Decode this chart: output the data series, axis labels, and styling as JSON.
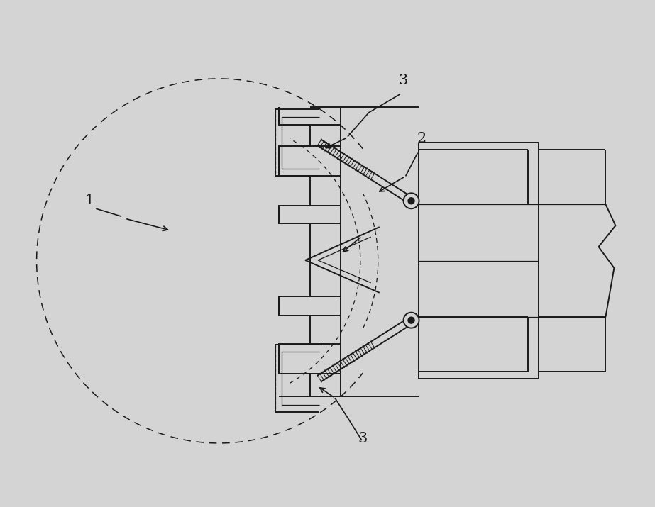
{
  "bg_color": "#d4d4d4",
  "line_color": "#1a1a1a",
  "figsize": [
    9.23,
    7.15
  ],
  "dpi": 100,
  "lw_main": 1.4,
  "lw_thin": 0.9,
  "lw_dash": 1.1
}
